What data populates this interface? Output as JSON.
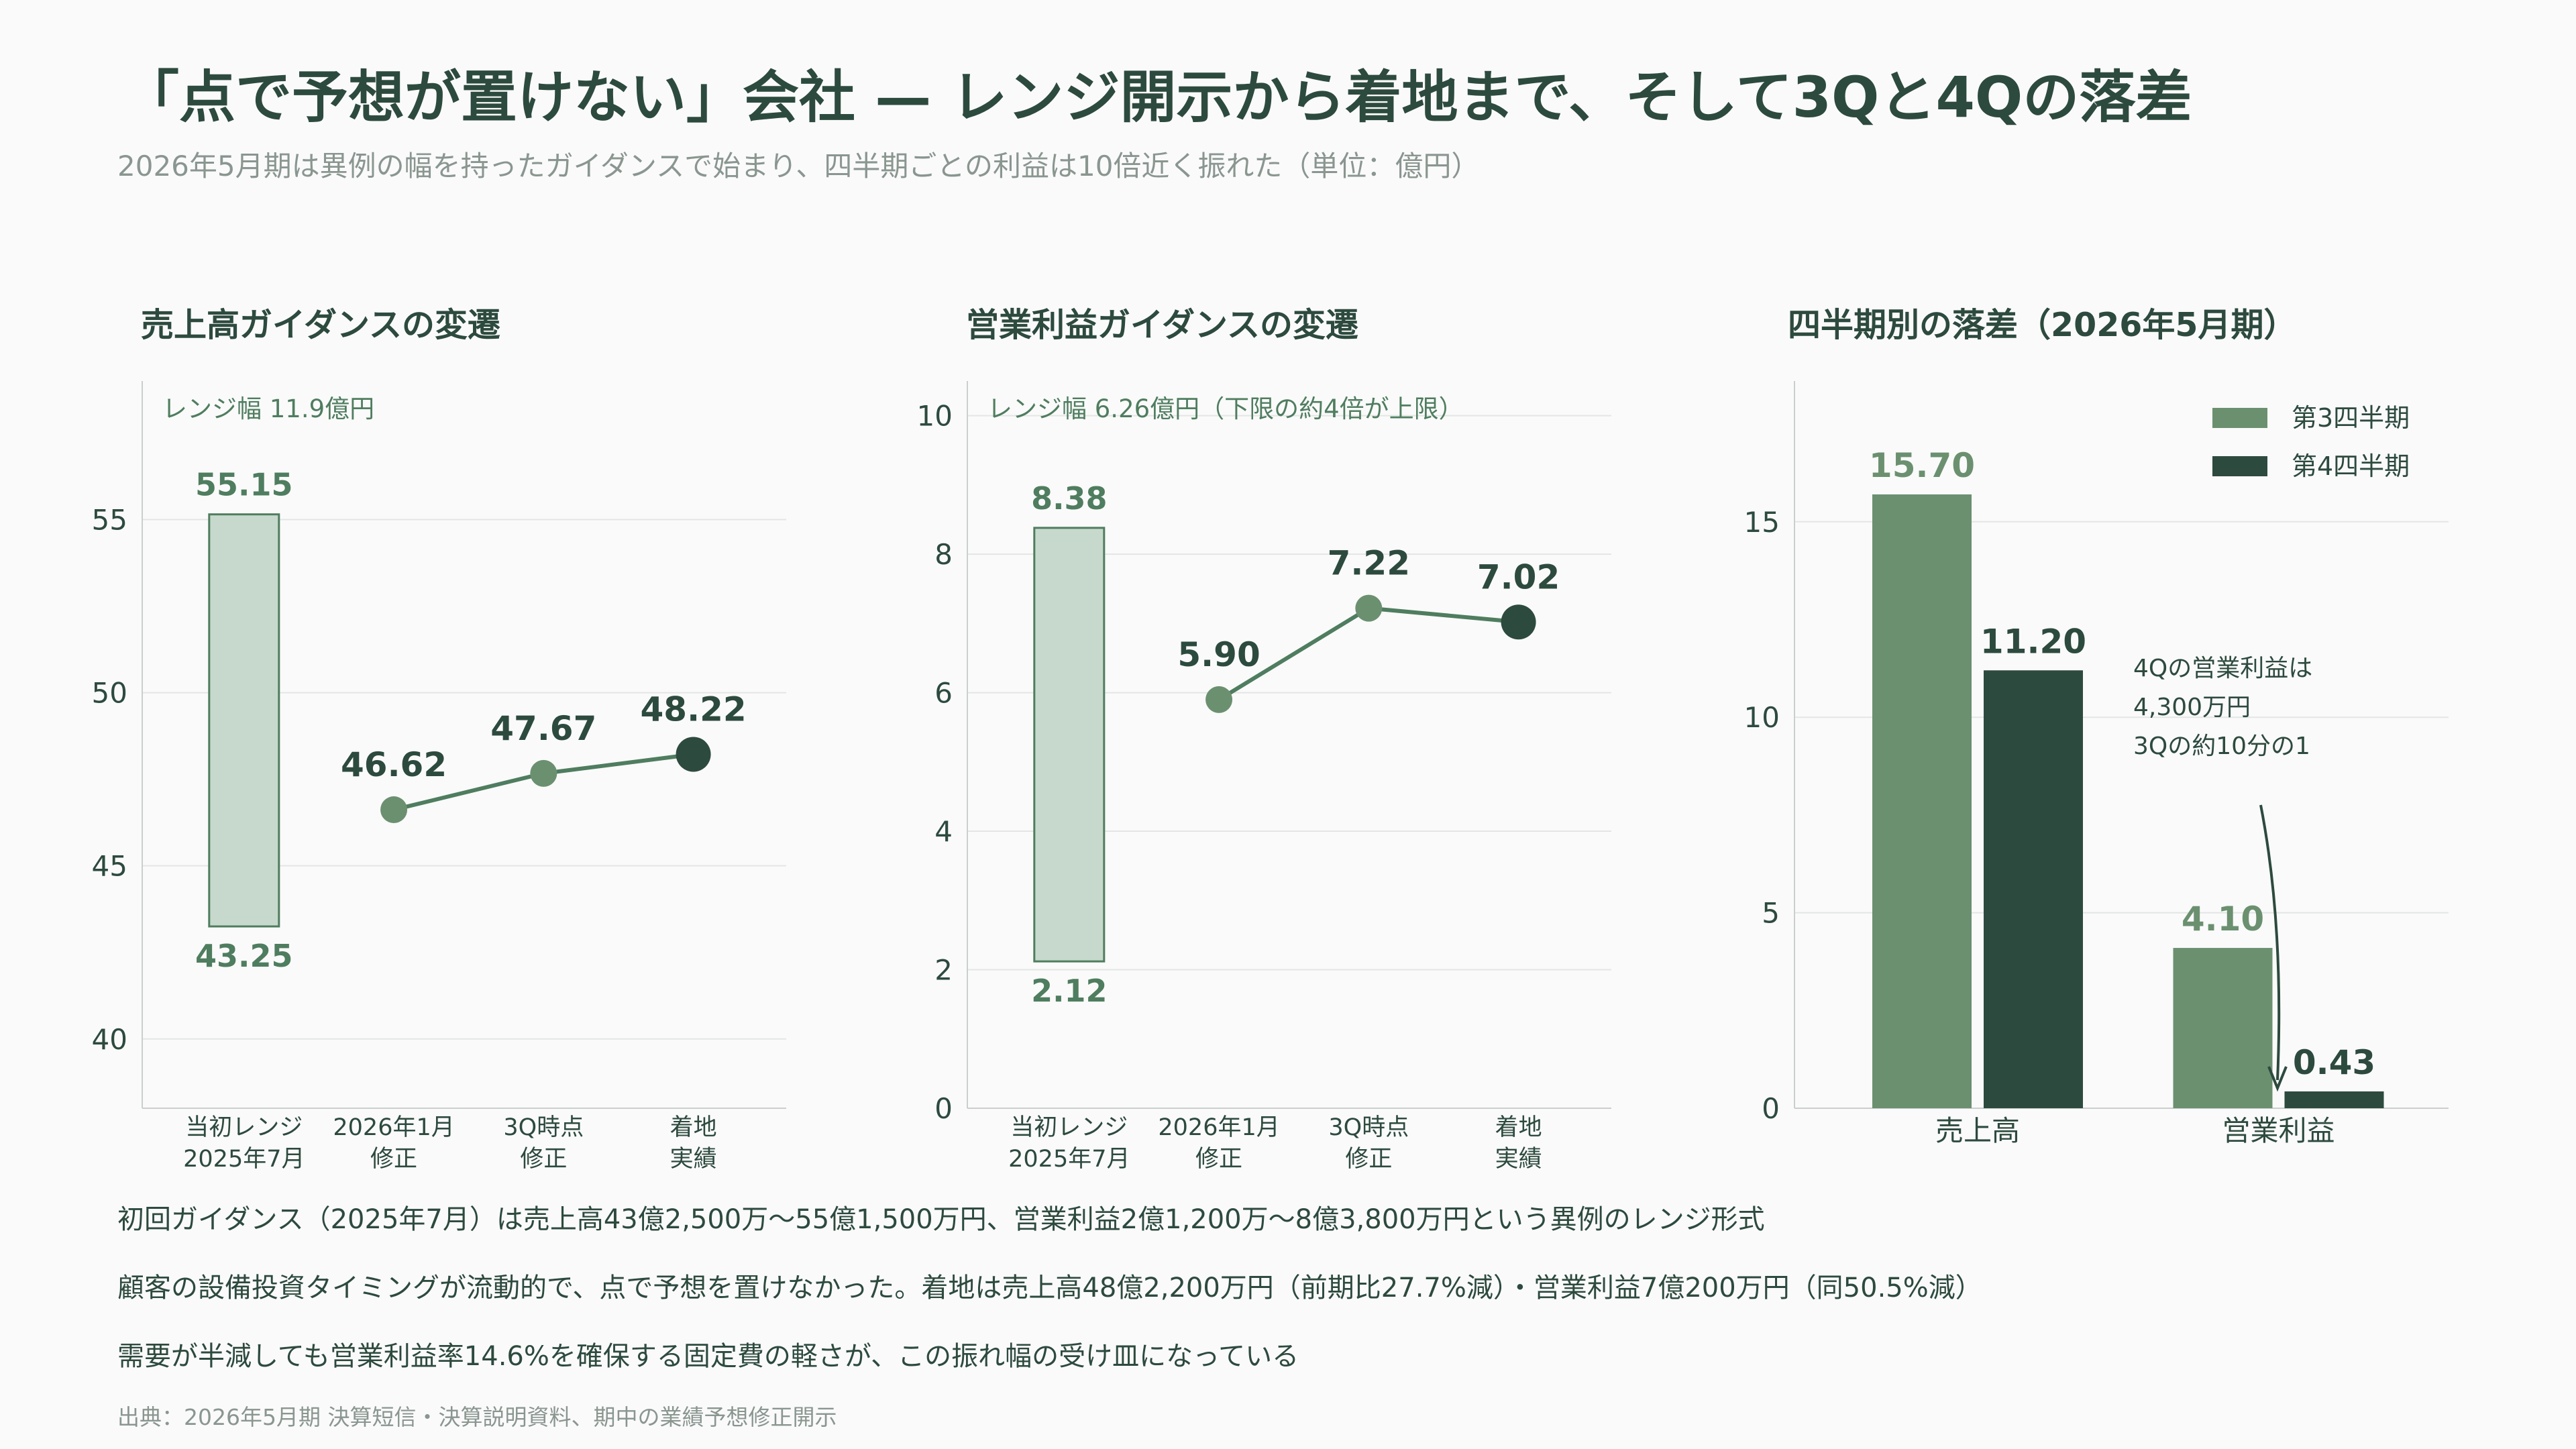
{
  "title": "「点で予想が置けない」会社 — レンジ開示から着地まで、そして3Qと4Qの落差",
  "subtitle": "2026年5月期は異例の幅を持ったガイダンスで始まり、四半期ごとの利益は10倍近く振れた（単位：億円）",
  "colors": {
    "range_fill": "#c7d9cd",
    "range_stroke": "#4f7d5f",
    "label_green": "#4f7d5f",
    "point_mid": "#6b9070",
    "point_final": "#2d4a3e",
    "q3": "#6b9070",
    "q4": "#2d4a3e",
    "grid": "#e3e6e4",
    "axis": "#c9cfcb",
    "text": "#2d4a3e"
  },
  "chart_data": [
    {
      "type": "line",
      "title": "売上高ガイダンスの変遷",
      "categories": [
        [
          "当初レンジ",
          "2025年7月"
        ],
        [
          "2026年1月",
          "修正"
        ],
        [
          "3Q時点",
          "修正"
        ],
        [
          "着地",
          "実績"
        ]
      ],
      "range": {
        "low": 43.25,
        "high": 55.15,
        "low_label": "43.25",
        "high_label": "55.15",
        "note": "レンジ幅 11.9億円"
      },
      "values": [
        null,
        46.62,
        47.67,
        48.22
      ],
      "value_labels": [
        "",
        "46.62",
        "47.67",
        "48.22"
      ],
      "ylim": [
        38,
        59
      ],
      "yticks": [
        40,
        45,
        50,
        55
      ],
      "grid": true
    },
    {
      "type": "line",
      "title": "営業利益ガイダンスの変遷",
      "categories": [
        [
          "当初レンジ",
          "2025年7月"
        ],
        [
          "2026年1月",
          "修正"
        ],
        [
          "3Q時点",
          "修正"
        ],
        [
          "着地",
          "実績"
        ]
      ],
      "range": {
        "low": 2.12,
        "high": 8.38,
        "low_label": "2.12",
        "high_label": "8.38",
        "note": "レンジ幅 6.26億円（下限の約4倍が上限）"
      },
      "values": [
        null,
        5.9,
        7.22,
        7.02
      ],
      "value_labels": [
        "",
        "5.90",
        "7.22",
        "7.02"
      ],
      "ylim": [
        0,
        10.5
      ],
      "yticks": [
        0,
        2,
        4,
        6,
        8,
        10
      ],
      "grid": true
    },
    {
      "type": "bar",
      "title": "四半期別の落差（2026年5月期）",
      "categories": [
        "売上高",
        "営業利益"
      ],
      "series": [
        {
          "name": "第3四半期",
          "values": [
            15.7,
            4.1
          ],
          "labels": [
            "15.70",
            "4.10"
          ]
        },
        {
          "name": "第4四半期",
          "values": [
            11.2,
            0.43
          ],
          "labels": [
            "11.20",
            "0.43"
          ]
        }
      ],
      "annotation": [
        "4Qの営業利益は",
        "4,300万円",
        "3Qの約10分の1"
      ],
      "ylim": [
        0,
        18.6
      ],
      "yticks": [
        0,
        5,
        10,
        15
      ],
      "legend": "top-right",
      "grid": true
    }
  ],
  "notes": [
    "初回ガイダンス（2025年7月）は売上高43億2,500万〜55億1,500万円、営業利益2億1,200万〜8億3,800万円という異例のレンジ形式",
    "顧客の設備投資タイミングが流動的で、点で予想を置けなかった。着地は売上高48億2,200万円（前期比27.7%減）・営業利益7億200万円（同50.5%減）",
    "需要が半減しても営業利益率14.6%を確保する固定費の軽さが、この振れ幅の受け皿になっている"
  ],
  "source": "出典：2026年5月期 決算短信・決算説明資料、期中の業績予想修正開示"
}
